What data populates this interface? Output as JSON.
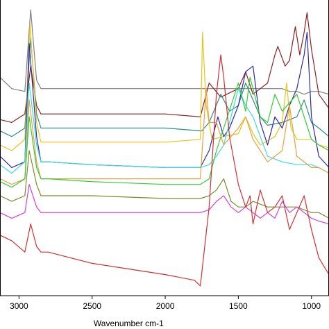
{
  "chart_data": {
    "type": "line",
    "title": "",
    "xlabel": "Wavenumber cm-1",
    "ylabel": "",
    "x_reversed": true,
    "xlim": [
      3130,
      880
    ],
    "ylim": [
      0,
      100
    ],
    "grid": false,
    "legend": "none",
    "x_ticks": [
      {
        "value": 3000,
        "label": "3000"
      },
      {
        "value": 2500,
        "label": "2500"
      },
      {
        "value": 2000,
        "label": "2000"
      },
      {
        "value": 1500,
        "label": "1500"
      },
      {
        "value": 1000,
        "label": "1000"
      }
    ],
    "series": [
      {
        "color": "#808080",
        "x": [
          3130,
          3050,
          2960,
          2920,
          2880,
          2850,
          2800,
          2500,
          2000,
          1750,
          1600,
          1480,
          1400,
          1300,
          1200,
          1150,
          1100,
          1050,
          1000,
          950,
          880
        ],
        "y": [
          76,
          72,
          71,
          100,
          75,
          72,
          72,
          72,
          72,
          72,
          72,
          72,
          72,
          72,
          72,
          71,
          71,
          70,
          71,
          71,
          70
        ]
      },
      {
        "color": "#8b2020",
        "x": [
          3130,
          3050,
          2960,
          2920,
          2880,
          2850,
          2800,
          2500,
          2000,
          1760,
          1700,
          1620,
          1580,
          1500,
          1450,
          1400,
          1350,
          1300,
          1250,
          1230,
          1180,
          1150,
          1110,
          1080,
          1050,
          1030,
          1000,
          950,
          880
        ],
        "y": [
          61,
          60,
          63,
          80,
          66,
          63,
          63,
          63,
          63,
          62,
          74,
          69,
          70,
          72,
          78,
          70,
          72,
          74,
          84,
          87,
          80,
          82,
          94,
          84,
          92,
          99,
          86,
          70,
          65
        ]
      },
      {
        "color": "#2e8b8b",
        "x": [
          3130,
          3050,
          2960,
          2920,
          2880,
          2850,
          2800,
          2500,
          2000,
          1750,
          1700,
          1620,
          1560,
          1500,
          1450,
          1400,
          1350,
          1300,
          1200,
          1100,
          1050,
          1000,
          950,
          880
        ],
        "y": [
          57,
          55,
          58,
          90,
          63,
          58,
          58,
          58,
          58,
          57,
          60,
          70,
          64,
          66,
          74,
          68,
          62,
          59,
          60,
          62,
          68,
          60,
          58,
          55
        ]
      },
      {
        "color": "#e8c41a",
        "x": [
          3130,
          3050,
          2960,
          2925,
          2880,
          2850,
          2800,
          2500,
          2000,
          1760,
          1745,
          1720,
          1680,
          1600,
          1500,
          1450,
          1400,
          1350,
          1250,
          1200,
          1170,
          1140,
          1100,
          1000,
          950,
          880
        ],
        "y": [
          52,
          50,
          54,
          95,
          60,
          53,
          53,
          53,
          53,
          54,
          92,
          66,
          54,
          55,
          56,
          62,
          56,
          52,
          55,
          60,
          74,
          58,
          54,
          54,
          52,
          51
        ]
      },
      {
        "color": "#2b2ba0",
        "x": [
          3130,
          3050,
          2960,
          2930,
          2880,
          2850,
          2800,
          2500,
          2000,
          1760,
          1700,
          1640,
          1600,
          1560,
          1500,
          1450,
          1400,
          1350,
          1300,
          1250,
          1200,
          1150,
          1100,
          1050,
          1030,
          1000,
          950,
          880
        ],
        "y": [
          48,
          44,
          46,
          88,
          55,
          46,
          46,
          45,
          44,
          44,
          50,
          62,
          55,
          58,
          66,
          78,
          80,
          60,
          52,
          62,
          58,
          66,
          72,
          84,
          92,
          62,
          48,
          44
        ]
      },
      {
        "color": "#3ad9e8",
        "x": [
          3130,
          3050,
          2960,
          2930,
          2880,
          2850,
          2800,
          2500,
          2000,
          1760,
          1700,
          1650,
          1600,
          1560,
          1500,
          1450,
          1400,
          1350,
          1300,
          1200,
          1100,
          1000,
          950,
          880
        ],
        "y": [
          45,
          42,
          46,
          74,
          52,
          46,
          46,
          45,
          44,
          44,
          45,
          48,
          52,
          60,
          72,
          66,
          62,
          55,
          48,
          46,
          45,
          45,
          44,
          42
        ]
      },
      {
        "color": "#e8a040",
        "x": [
          3130,
          3050,
          2960,
          2930,
          2880,
          2850,
          2800,
          2500,
          2000,
          1760,
          1720,
          1700,
          1650,
          1600,
          1550,
          1500,
          1450,
          1400,
          1350,
          1300,
          1200,
          1150,
          1100,
          1000,
          950,
          880
        ],
        "y": [
          40,
          38,
          40,
          68,
          46,
          40,
          40,
          40,
          40,
          40,
          72,
          60,
          60,
          52,
          55,
          58,
          62,
          54,
          50,
          46,
          50,
          66,
          48,
          44,
          44,
          42
        ]
      },
      {
        "color": "#33cc33",
        "x": [
          3130,
          3050,
          2960,
          2930,
          2880,
          2850,
          2800,
          2500,
          2000,
          1760,
          1700,
          1650,
          1600,
          1550,
          1500,
          1450,
          1420,
          1380,
          1350,
          1300,
          1250,
          1200,
          1100,
          1000,
          950,
          880
        ],
        "y": [
          39,
          37,
          40,
          62,
          44,
          40,
          40,
          39,
          38,
          38,
          40,
          50,
          58,
          66,
          74,
          64,
          76,
          68,
          62,
          60,
          70,
          64,
          70,
          54,
          52,
          50
        ]
      },
      {
        "color": "#7a8b2a",
        "x": [
          3130,
          3050,
          2960,
          2930,
          2880,
          2850,
          2800,
          2500,
          2000,
          1760,
          1700,
          1650,
          1600,
          1550,
          1500,
          1450,
          1400,
          1300,
          1200,
          1100,
          1050,
          1000,
          950,
          880
        ],
        "y": [
          34,
          32,
          34,
          50,
          38,
          34,
          34,
          34,
          33,
          33,
          34,
          36,
          40,
          32,
          30,
          30,
          32,
          30,
          30,
          30,
          29,
          28,
          28,
          26
        ]
      },
      {
        "color": "#d640d6",
        "x": [
          3130,
          3050,
          2960,
          2930,
          2880,
          2850,
          2800,
          2500,
          2000,
          1760,
          1700,
          1650,
          1600,
          1550,
          1500,
          1450,
          1400,
          1350,
          1300,
          1250,
          1200,
          1150,
          1100,
          1000,
          950,
          880
        ],
        "y": [
          28,
          26,
          28,
          38,
          30,
          28,
          28,
          28,
          28,
          28,
          29,
          32,
          34,
          30,
          28,
          30,
          28,
          26,
          28,
          26,
          32,
          28,
          30,
          26,
          25,
          24
        ]
      },
      {
        "color": "#d03030",
        "x": [
          3130,
          3050,
          2960,
          2920,
          2880,
          2850,
          2800,
          2500,
          2250,
          2000,
          1800,
          1760,
          1700,
          1650,
          1620,
          1600,
          1560,
          1500,
          1450,
          1420,
          1400,
          1350,
          1300,
          1250,
          1200,
          1150,
          1100,
          1050,
          1000,
          950,
          880
        ],
        "y": [
          20,
          18,
          14,
          24,
          16,
          14,
          14,
          10,
          8,
          6,
          4,
          2,
          30,
          70,
          84,
          76,
          55,
          38,
          30,
          34,
          24,
          36,
          28,
          30,
          34,
          22,
          28,
          34,
          22,
          12,
          6
        ]
      }
    ]
  }
}
